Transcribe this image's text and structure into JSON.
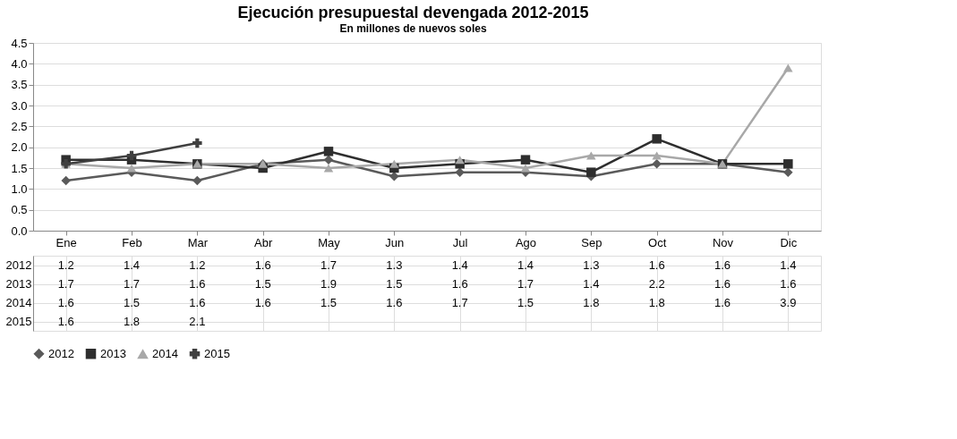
{
  "chart_data": {
    "type": "line",
    "title": "Ejecución presupuestal devengada 2012-2015",
    "subtitle": "En millones de nuevos soles",
    "categories": [
      "Ene",
      "Feb",
      "Mar",
      "Abr",
      "May",
      "Jun",
      "Jul",
      "Ago",
      "Sep",
      "Oct",
      "Nov",
      "Dic"
    ],
    "series": [
      {
        "name": "2012",
        "color": "#5a5a5a",
        "marker": "diamond",
        "values": [
          1.2,
          1.4,
          1.2,
          1.6,
          1.7,
          1.3,
          1.4,
          1.4,
          1.3,
          1.6,
          1.6,
          1.4
        ]
      },
      {
        "name": "2013",
        "color": "#2e2e2e",
        "marker": "square",
        "values": [
          1.7,
          1.7,
          1.6,
          1.5,
          1.9,
          1.5,
          1.6,
          1.7,
          1.4,
          2.2,
          1.6,
          1.6
        ]
      },
      {
        "name": "2014",
        "color": "#a8a8a8",
        "marker": "triangle",
        "values": [
          1.6,
          1.5,
          1.6,
          1.6,
          1.5,
          1.6,
          1.7,
          1.5,
          1.8,
          1.8,
          1.6,
          3.9
        ]
      },
      {
        "name": "2015",
        "color": "#404040",
        "marker": "cross",
        "values": [
          1.6,
          1.8,
          2.1,
          null,
          null,
          null,
          null,
          null,
          null,
          null,
          null,
          null
        ]
      }
    ],
    "ylim": [
      0,
      4.5
    ],
    "yticks": [
      {
        "value": 0,
        "label": "0.0"
      },
      {
        "value": 0.5,
        "label": "0.5"
      },
      {
        "value": 1,
        "label": "1.0"
      },
      {
        "value": 1.5,
        "label": "1.5"
      },
      {
        "value": 2,
        "label": "2.0"
      },
      {
        "value": 2.5,
        "label": "2.5"
      },
      {
        "value": 3,
        "label": "3.0"
      },
      {
        "value": 3.5,
        "label": "3.5"
      },
      {
        "value": 4,
        "label": "4.0"
      },
      {
        "value": 4.5,
        "label": "4.5"
      }
    ],
    "grid": "y",
    "legend": "bottom",
    "data_labels": true,
    "line_style": "solid"
  }
}
